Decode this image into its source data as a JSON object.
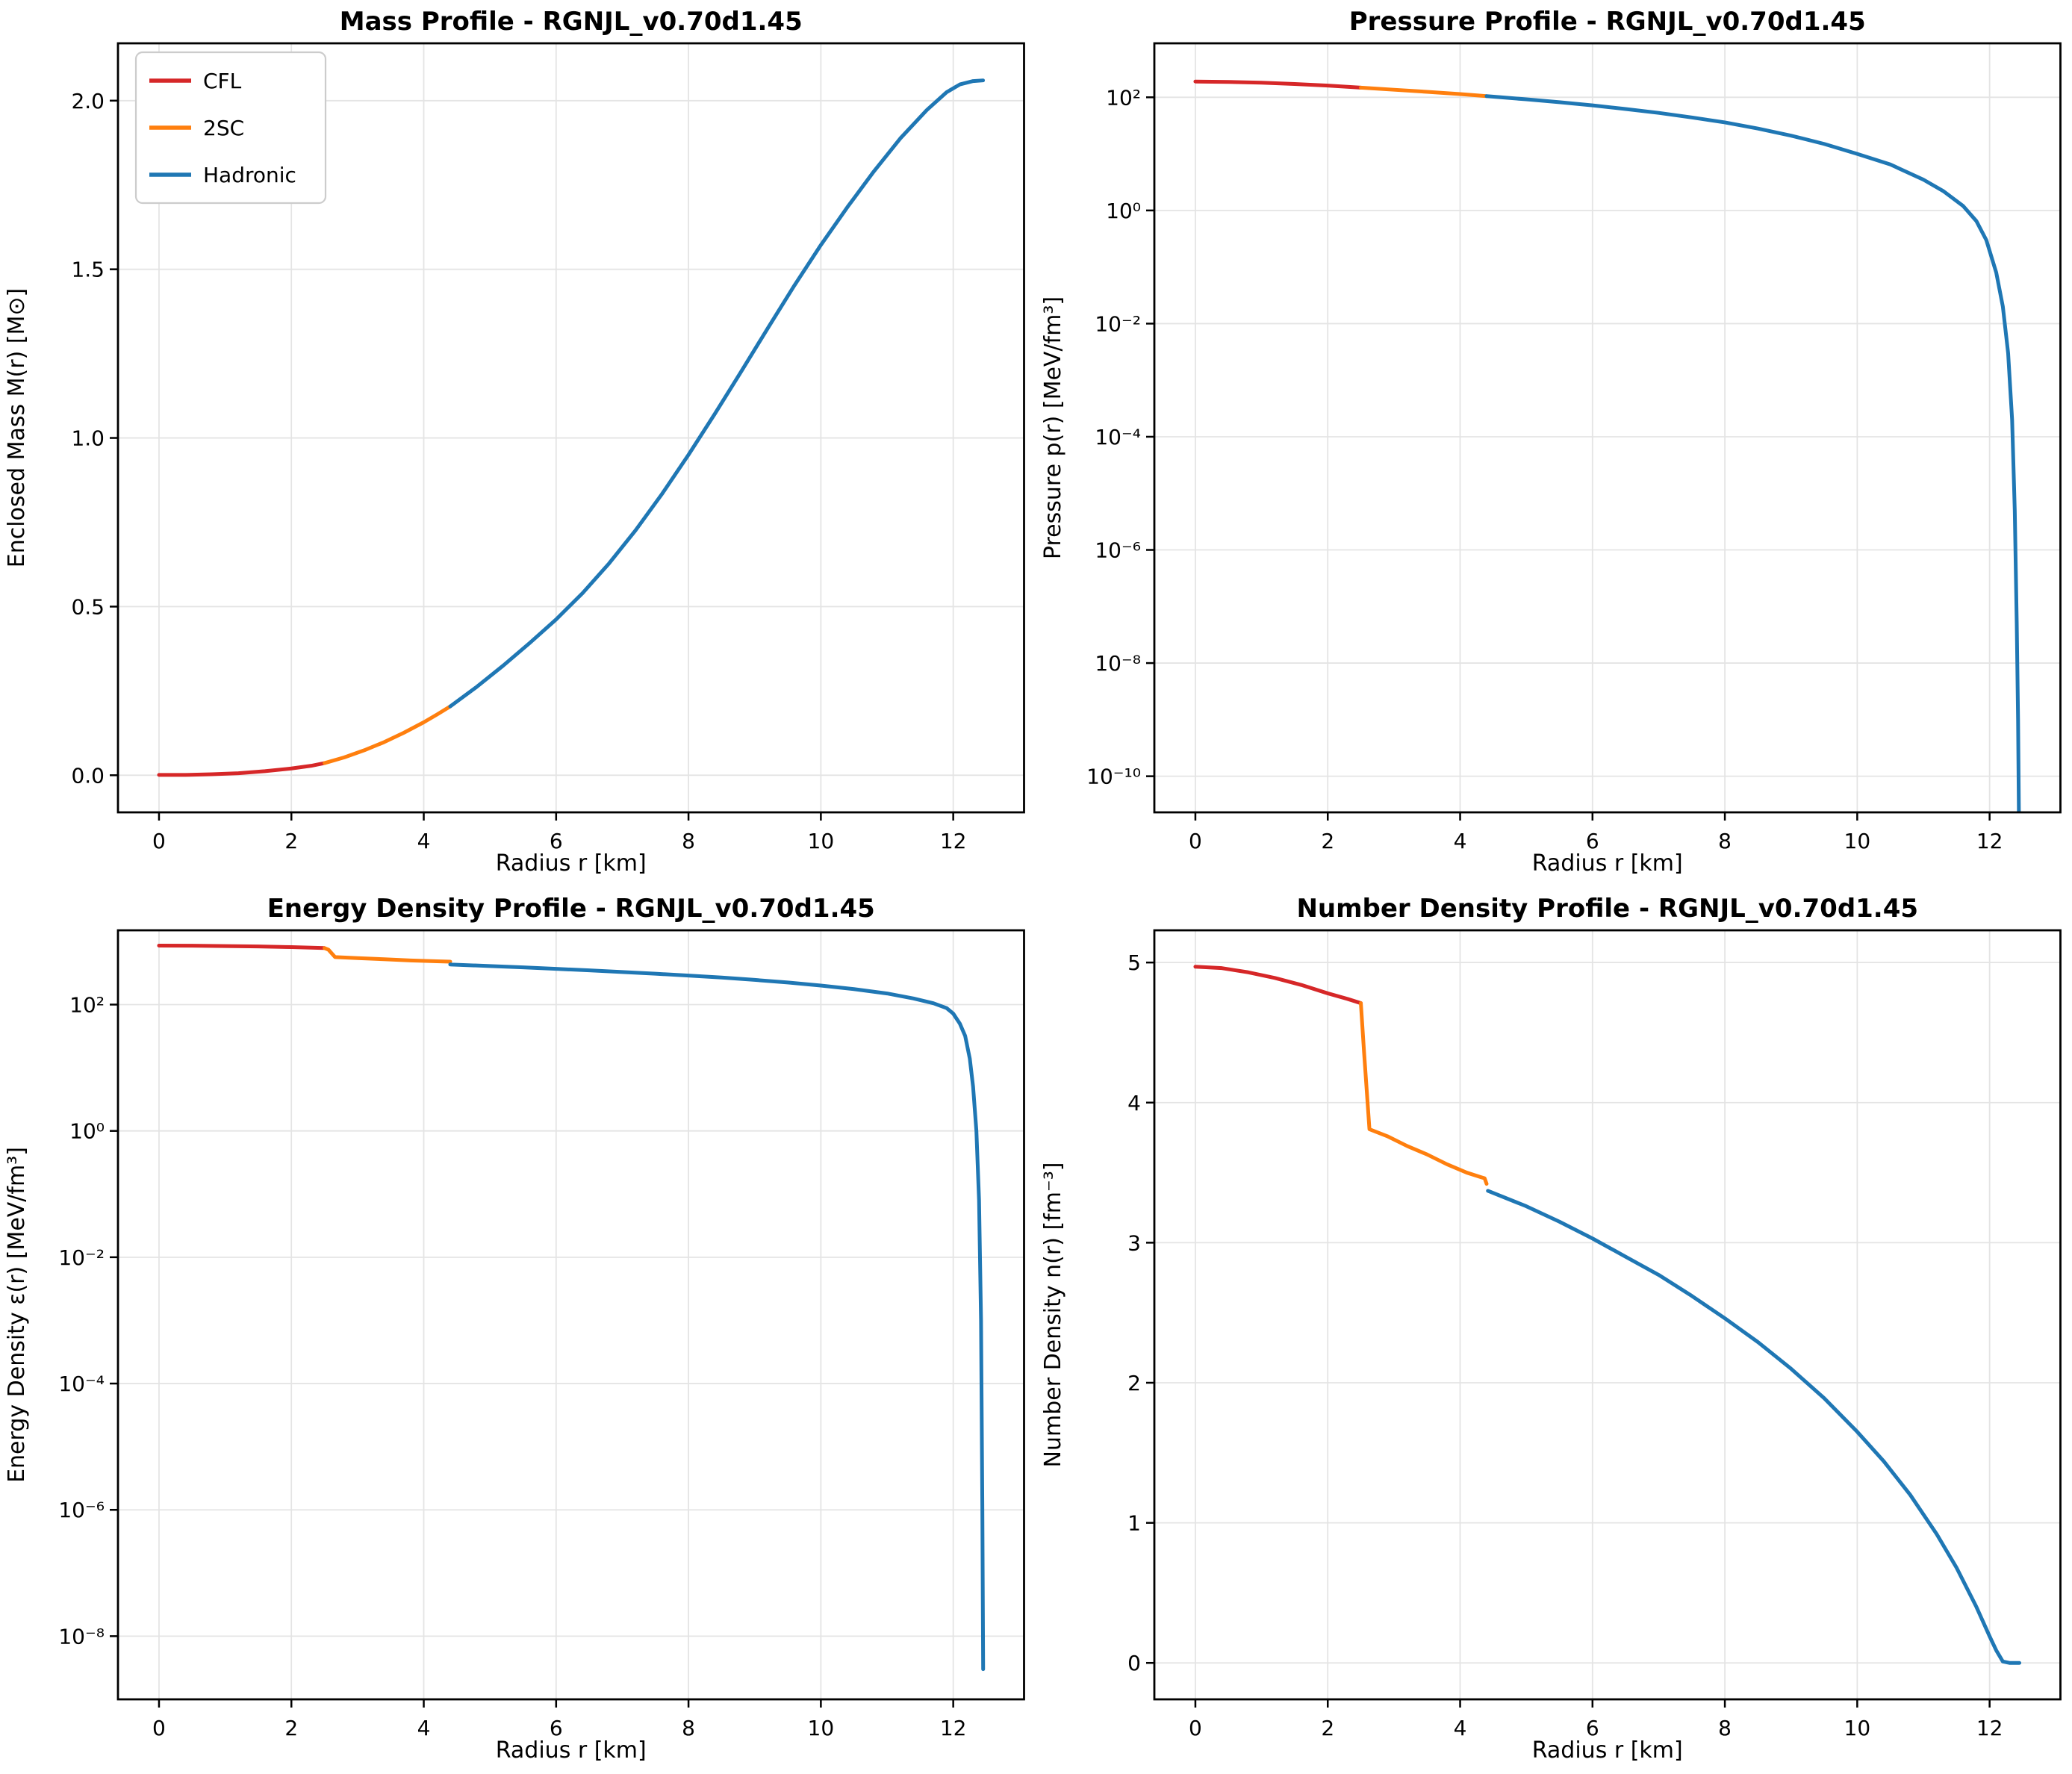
{
  "figure": {
    "background": "#ffffff"
  },
  "colors": {
    "cfl": "#d62728",
    "twosc": "#ff7f0e",
    "hadronic": "#1f77b4",
    "grid": "#e4e4e4",
    "spine": "#000000",
    "legend_border": "#cccccc",
    "text": "#000000"
  },
  "legend": {
    "entries": [
      {
        "label": "CFL",
        "color": "#d62728"
      },
      {
        "label": "2SC",
        "color": "#ff7f0e"
      },
      {
        "label": "Hadronic",
        "color": "#1f77b4"
      }
    ],
    "position": "upper left"
  },
  "chart_data": [
    {
      "id": "mass",
      "type": "line",
      "title": "Mass Profile - RGNJL_v0.70d1.45",
      "xlabel": "Radius r [km]",
      "ylabel": "Enclosed Mass M(r) [M⊙]",
      "yscale": "linear",
      "xlim": [
        -0.62,
        13.07
      ],
      "ylim": [
        -0.11,
        2.17
      ],
      "grid": true,
      "legend": true,
      "xticks": {
        "values": [
          0,
          2,
          4,
          6,
          8,
          10,
          12
        ],
        "labels": [
          "0",
          "2",
          "4",
          "6",
          "8",
          "10",
          "12"
        ]
      },
      "yticks": {
        "values": [
          0.0,
          0.5,
          1.0,
          1.5,
          2.0
        ],
        "labels": [
          "0.0",
          "0.5",
          "1.0",
          "1.5",
          "2.0"
        ]
      },
      "series": [
        {
          "name": "CFL",
          "color": "#d62728",
          "x": [
            0,
            0.4,
            0.8,
            1.2,
            1.6,
            2.0,
            2.3,
            2.5
          ],
          "y": [
            0.001,
            0.001,
            0.003,
            0.006,
            0.012,
            0.02,
            0.028,
            0.036
          ]
        },
        {
          "name": "2SC",
          "color": "#ff7f0e",
          "x": [
            2.5,
            2.8,
            3.1,
            3.4,
            3.7,
            4.0,
            4.2,
            4.4
          ],
          "y": [
            0.036,
            0.053,
            0.074,
            0.098,
            0.126,
            0.157,
            0.18,
            0.204
          ]
        },
        {
          "name": "Hadronic",
          "color": "#1f77b4",
          "x": [
            4.4,
            4.8,
            5.2,
            5.6,
            6.0,
            6.4,
            6.8,
            7.2,
            7.6,
            8.0,
            8.4,
            8.8,
            9.2,
            9.6,
            10.0,
            10.4,
            10.8,
            11.2,
            11.6,
            11.9,
            12.1,
            12.3,
            12.45
          ],
          "y": [
            0.204,
            0.262,
            0.325,
            0.392,
            0.462,
            0.54,
            0.628,
            0.726,
            0.834,
            0.95,
            1.072,
            1.198,
            1.326,
            1.452,
            1.572,
            1.684,
            1.79,
            1.888,
            1.972,
            2.025,
            2.048,
            2.058,
            2.06
          ]
        }
      ]
    },
    {
      "id": "pressure",
      "type": "line",
      "title": "Pressure Profile - RGNJL_v0.70d1.45",
      "xlabel": "Radius r [km]",
      "ylabel": "Pressure p(r) [MeV/fm³]",
      "yscale": "log",
      "xlim": [
        -0.62,
        13.07
      ],
      "ylim": [
        2.3e-11,
        900
      ],
      "grid": true,
      "legend": false,
      "xticks": {
        "values": [
          0,
          2,
          4,
          6,
          8,
          10,
          12
        ],
        "labels": [
          "0",
          "2",
          "4",
          "6",
          "8",
          "10",
          "12"
        ]
      },
      "yticks": {
        "values": [
          100.0,
          1,
          0.01,
          0.0001,
          1e-06,
          1e-08,
          1e-10
        ],
        "labels": [
          "10²",
          "10⁰",
          "10⁻²",
          "10⁻⁴",
          "10⁻⁶",
          "10⁻⁸",
          "10⁻¹⁰"
        ]
      },
      "series": [
        {
          "name": "CFL",
          "color": "#d62728",
          "x": [
            0,
            0.5,
            1.0,
            1.5,
            2.0,
            2.5
          ],
          "y": [
            190,
            187,
            181,
            172,
            161,
            148
          ]
        },
        {
          "name": "2SC",
          "color": "#ff7f0e",
          "x": [
            2.5,
            3.0,
            3.5,
            4.0,
            4.4
          ],
          "y": [
            148,
            136,
            125,
            114,
            105
          ]
        },
        {
          "name": "Hadronic",
          "color": "#1f77b4",
          "x": [
            4.4,
            5.0,
            5.5,
            6.0,
            6.5,
            7.0,
            7.5,
            8.0,
            8.5,
            9.0,
            9.5,
            10.0,
            10.5,
            11.0,
            11.3,
            11.6,
            11.8,
            11.95,
            12.1,
            12.2,
            12.28,
            12.34,
            12.38,
            12.41,
            12.43,
            12.445,
            12.452
          ],
          "y": [
            105,
            92,
            82,
            72,
            62,
            53,
            44,
            36,
            28,
            21,
            15,
            10,
            6.5,
            3.5,
            2.2,
            1.2,
            0.65,
            0.3,
            0.08,
            0.02,
            0.003,
            0.0002,
            5e-06,
            5e-08,
            1e-09,
            1e-11,
            5e-12
          ]
        }
      ]
    },
    {
      "id": "energy",
      "type": "line",
      "title": "Energy Density Profile - RGNJL_v0.70d1.45",
      "xlabel": "Radius r [km]",
      "ylabel": "Energy Density ε(r) [MeV/fm³]",
      "yscale": "log",
      "xlim": [
        -0.62,
        13.07
      ],
      "ylim": [
        1e-09,
        1500
      ],
      "grid": true,
      "legend": false,
      "xticks": {
        "values": [
          0,
          2,
          4,
          6,
          8,
          10,
          12
        ],
        "labels": [
          "0",
          "2",
          "4",
          "6",
          "8",
          "10",
          "12"
        ]
      },
      "yticks": {
        "values": [
          100.0,
          1,
          0.01,
          0.0001,
          1e-06,
          1e-08
        ],
        "labels": [
          "10²",
          "10⁰",
          "10⁻²",
          "10⁻⁴",
          "10⁻⁶",
          "10⁻⁸"
        ]
      },
      "series": [
        {
          "name": "CFL",
          "color": "#d62728",
          "x": [
            0,
            0.5,
            1.0,
            1.5,
            2.0,
            2.5
          ],
          "y": [
            860,
            855,
            845,
            832,
            812,
            785
          ]
        },
        {
          "name": "2SC",
          "color": "#ff7f0e",
          "x": [
            2.5,
            2.56,
            2.66,
            3.0,
            3.4,
            3.8,
            4.2,
            4.4
          ],
          "y": [
            785,
            740,
            565,
            545,
            522,
            500,
            484,
            478
          ]
        },
        {
          "name": "Hadronic",
          "color": "#1f77b4",
          "x": [
            4.4,
            4.42,
            5.0,
            5.5,
            6.0,
            6.5,
            7.0,
            7.5,
            8.0,
            8.5,
            9.0,
            9.5,
            10.0,
            10.5,
            11.0,
            11.4,
            11.7,
            11.9,
            12.0,
            12.1,
            12.18,
            12.25,
            12.3,
            12.35,
            12.39,
            12.42,
            12.44,
            12.452
          ],
          "y": [
            432,
            430,
            408,
            388,
            368,
            348,
            328,
            308,
            288,
            268,
            246,
            224,
            200,
            176,
            150,
            125,
            105,
            88,
            72,
            50,
            32,
            14,
            5,
            1,
            0.08,
            0.001,
            1e-06,
            3e-09
          ]
        }
      ]
    },
    {
      "id": "number",
      "type": "line",
      "title": "Number Density Profile - RGNJL_v0.70d1.45",
      "xlabel": "Radius r [km]",
      "ylabel": "Number Density n(r) [fm⁻³]",
      "yscale": "linear",
      "xlim": [
        -0.62,
        13.07
      ],
      "ylim": [
        -0.26,
        5.23
      ],
      "grid": true,
      "legend": false,
      "xticks": {
        "values": [
          0,
          2,
          4,
          6,
          8,
          10,
          12
        ],
        "labels": [
          "0",
          "2",
          "4",
          "6",
          "8",
          "10",
          "12"
        ]
      },
      "yticks": {
        "values": [
          0,
          1,
          2,
          3,
          4,
          5
        ],
        "labels": [
          "0",
          "1",
          "2",
          "3",
          "4",
          "5"
        ]
      },
      "series": [
        {
          "name": "CFL",
          "color": "#d62728",
          "x": [
            0,
            0.4,
            0.8,
            1.2,
            1.6,
            2.0,
            2.3,
            2.5
          ],
          "y": [
            4.97,
            4.96,
            4.93,
            4.89,
            4.84,
            4.78,
            4.74,
            4.71
          ]
        },
        {
          "name": "2SC",
          "color": "#ff7f0e",
          "x": [
            2.5,
            2.55,
            2.63,
            2.9,
            3.2,
            3.5,
            3.8,
            4.1,
            4.3,
            4.37,
            4.4
          ],
          "y": [
            4.71,
            4.35,
            3.81,
            3.76,
            3.69,
            3.63,
            3.56,
            3.5,
            3.47,
            3.46,
            3.42
          ]
        },
        {
          "name": "Hadronic",
          "color": "#1f77b4",
          "x": [
            4.42,
            5.0,
            5.5,
            6.0,
            6.5,
            7.0,
            7.5,
            8.0,
            8.5,
            9.0,
            9.5,
            10.0,
            10.4,
            10.8,
            11.2,
            11.5,
            11.8,
            12.0,
            12.1,
            12.2,
            12.3,
            12.45
          ],
          "y": [
            3.37,
            3.26,
            3.15,
            3.03,
            2.9,
            2.77,
            2.62,
            2.46,
            2.29,
            2.1,
            1.89,
            1.65,
            1.44,
            1.2,
            0.92,
            0.68,
            0.4,
            0.19,
            0.09,
            0.01,
            0.0,
            0.0
          ]
        }
      ]
    }
  ]
}
